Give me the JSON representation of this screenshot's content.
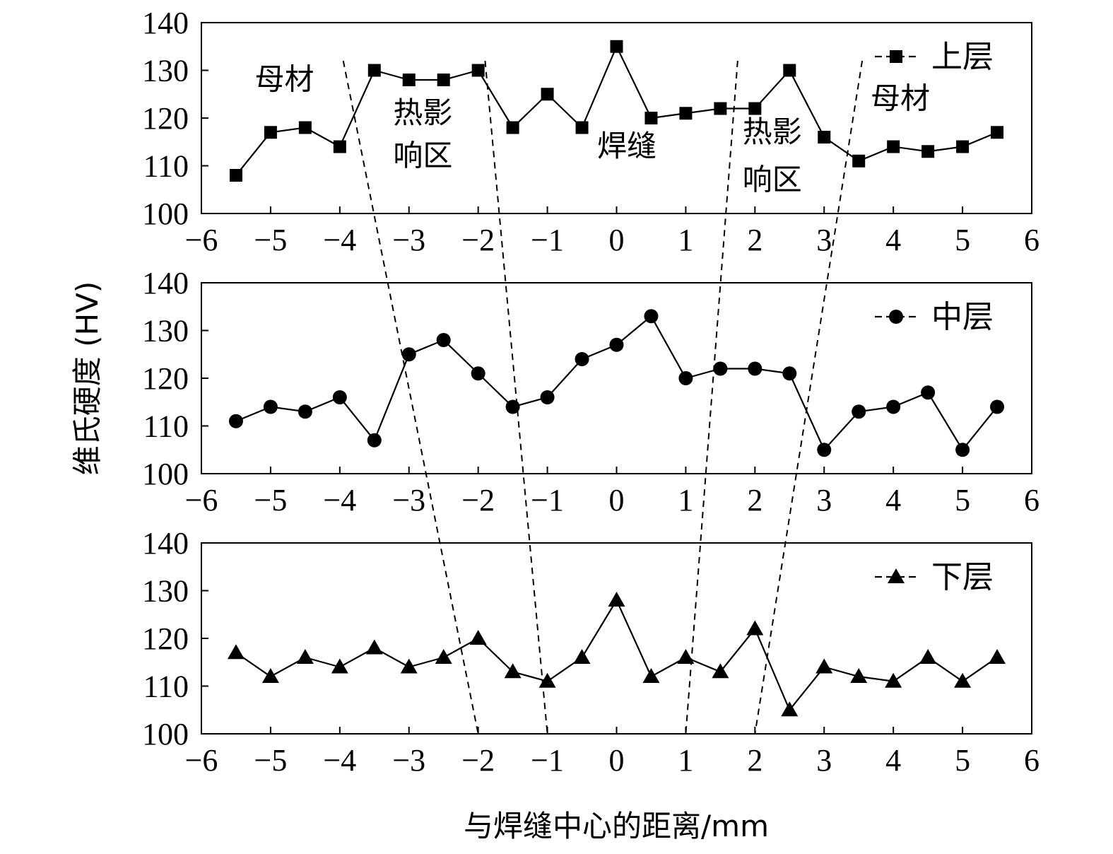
{
  "chart_data": {
    "type": "line",
    "ylabel": "维氏硬度 (HV)",
    "xlabel": "与焊缝中心的距离/mm",
    "xlim": [
      -6,
      6
    ],
    "ylim": [
      100,
      140
    ],
    "x_ticks": [
      "−6",
      "−5",
      "−4",
      "−3",
      "−2",
      "−1",
      "0",
      "1",
      "2",
      "3",
      "4",
      "5",
      "6"
    ],
    "y_ticks": [
      "100",
      "110",
      "120",
      "130",
      "140"
    ],
    "x": [
      -5.5,
      -5,
      -4.5,
      -4,
      -3.5,
      -3,
      -2.5,
      -2,
      -1.5,
      -1,
      -0.5,
      0,
      0.5,
      1,
      1.5,
      2,
      2.5,
      3,
      3.5,
      4,
      4.5,
      5,
      5.5
    ],
    "panels": [
      {
        "series_name": "上层",
        "marker": "square",
        "values": [
          108,
          117,
          118,
          114,
          130,
          128,
          128,
          130,
          118,
          125,
          118,
          135,
          120,
          121,
          122,
          122,
          130,
          116,
          111,
          114,
          113,
          114,
          117
        ]
      },
      {
        "series_name": "中层",
        "marker": "circle",
        "values": [
          111,
          114,
          113,
          116,
          107,
          125,
          128,
          121,
          114,
          116,
          124,
          127,
          133,
          120,
          122,
          122,
          121,
          105,
          113,
          114,
          117,
          105,
          114
        ]
      },
      {
        "series_name": "下层",
        "marker": "triangle",
        "values": [
          117,
          112,
          116,
          114,
          118,
          114,
          116,
          120,
          113,
          111,
          116,
          128,
          112,
          116,
          113,
          122,
          105,
          114,
          112,
          111,
          116,
          111,
          116
        ]
      }
    ],
    "region_labels": [
      {
        "text": "母材",
        "x": -4.8,
        "y": 126
      },
      {
        "text": "热影",
        "x": -2.8,
        "y": 119
      },
      {
        "text": "响区",
        "x": -2.8,
        "y": 110
      },
      {
        "text": "焊缝",
        "x": 0.15,
        "y": 112
      },
      {
        "text": "热影",
        "x": 2.25,
        "y": 115
      },
      {
        "text": "响区",
        "x": 2.25,
        "y": 105
      },
      {
        "text": "母材",
        "x": 4.1,
        "y": 122
      }
    ],
    "boundary_lines": [
      {
        "top_x": -3.95,
        "bottom_x": -2.0
      },
      {
        "top_x": -1.9,
        "bottom_x": -1.0
      },
      {
        "top_x": 1.75,
        "bottom_x": 1.0
      },
      {
        "top_x": 3.55,
        "bottom_x": 2.0
      }
    ]
  }
}
